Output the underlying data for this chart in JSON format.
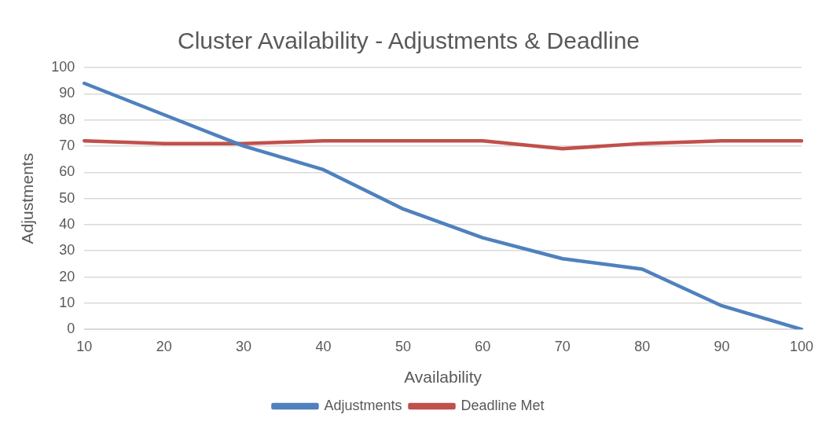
{
  "chart_data": {
    "type": "line",
    "title": "Cluster Availability - Adjustments & Deadline",
    "xlabel": "Availability",
    "ylabel": "Adjustments",
    "categories": [
      "10",
      "20",
      "30",
      "40",
      "50",
      "60",
      "70",
      "80",
      "90",
      "100"
    ],
    "series": [
      {
        "name": "Adjustments",
        "color": "#4f81bd",
        "values": [
          94,
          82,
          70,
          61,
          46,
          35,
          27,
          23,
          9,
          0
        ]
      },
      {
        "name": "Deadline Met",
        "color": "#c0504d",
        "values": [
          72,
          71,
          71,
          72,
          72,
          72,
          69,
          71,
          72,
          72
        ]
      }
    ],
    "ylim": [
      0,
      100
    ],
    "yticks": [
      0,
      10,
      20,
      30,
      40,
      50,
      60,
      70,
      80,
      90,
      100
    ],
    "grid": "y",
    "legend": "bottom",
    "marker": "none",
    "line_style": "solid"
  }
}
